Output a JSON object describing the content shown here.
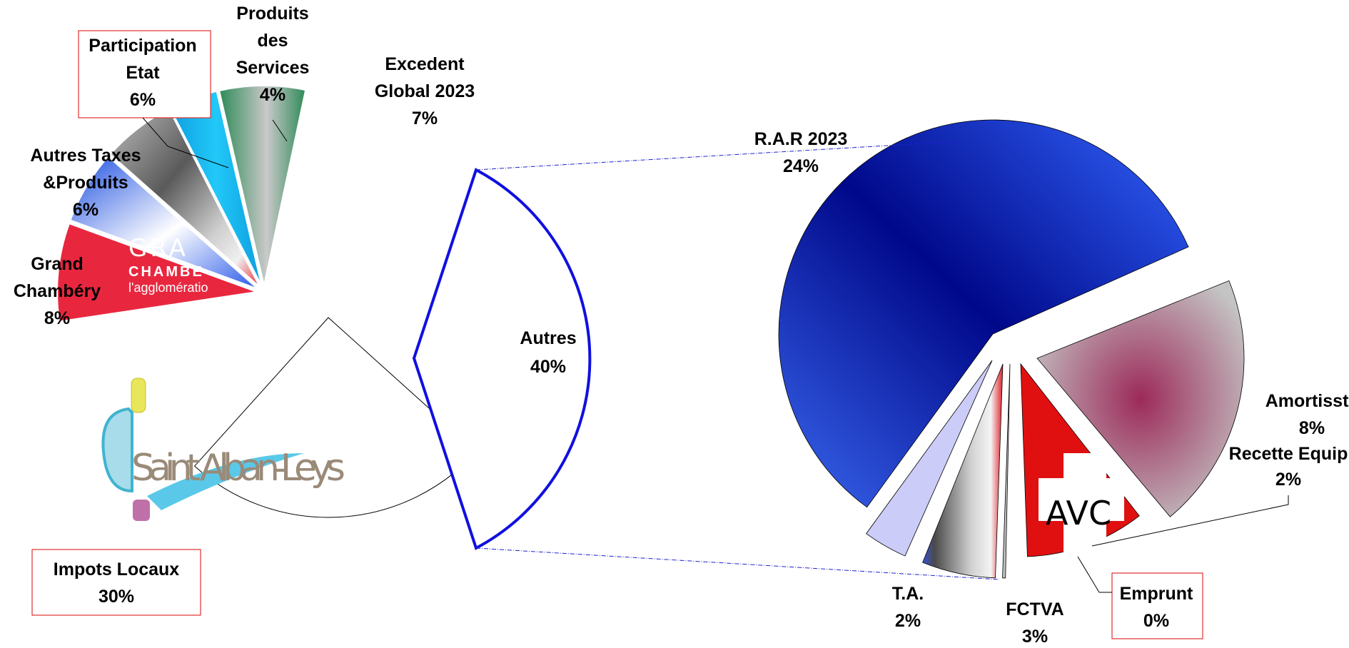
{
  "chart_data": {
    "type": "pie",
    "subtype": "pie-of-pie",
    "main_pie": {
      "slices": [
        {
          "label": "Impots Locaux",
          "pct_label": "30%",
          "value": 30,
          "color": "#ffffff",
          "boxed": true
        },
        {
          "label": "Grand Chambéry",
          "pct_label": "8%",
          "value": 8,
          "color": "#e8273f",
          "boxed": false
        },
        {
          "label": "Autres Taxes &Produits",
          "pct_label": "6%",
          "value": 6,
          "color": "#2f5fe8",
          "boxed": false
        },
        {
          "label": "Participation Etat",
          "pct_label": "6%",
          "value": 6,
          "color": "#8a8a8a",
          "boxed": true
        },
        {
          "label": "Produits des Services",
          "pct_label": "4%",
          "value": 4,
          "color": "#14b8f0",
          "boxed": false
        },
        {
          "label": "Excedent Global 2023",
          "pct_label": "7%",
          "value": 7,
          "color": "#3a8f60",
          "boxed": false
        },
        {
          "label": "Autres",
          "pct_label": "40%",
          "value": 40,
          "color": "#ffffff",
          "outline": "#1010e0",
          "boxed": false
        }
      ]
    },
    "secondary_pie": {
      "slices": [
        {
          "label": "R.A.R 2023",
          "pct_label": "24%",
          "value": 24,
          "color": "#0d1fa8",
          "boxed": false
        },
        {
          "label": "Amortissts",
          "pct_label": "8%",
          "value": 8,
          "color": "#a0305a",
          "boxed": false
        },
        {
          "label": "Recette Equip",
          "pct_label": "2%",
          "value": 2,
          "color": "#e01010",
          "boxed": false
        },
        {
          "label": "Emprunt",
          "pct_label": "0%",
          "value": 0,
          "color": "#c0c0c0",
          "boxed": true
        },
        {
          "label": "FCTVA",
          "pct_label": "3%",
          "value": 3,
          "color": "#707070",
          "boxed": false
        },
        {
          "label": "T.A.",
          "pct_label": "2%",
          "value": 2,
          "color": "#ccccf8",
          "boxed": false
        }
      ]
    },
    "legend": "none",
    "grid": false
  },
  "logos": {
    "grand_chambery_line1": "GRA",
    "grand_chambery_line2": "CHAMBE",
    "grand_chambery_line3": "l'agglomératio",
    "saint_alban": "Saint Alban-Leys",
    "savoie": "AVC"
  }
}
